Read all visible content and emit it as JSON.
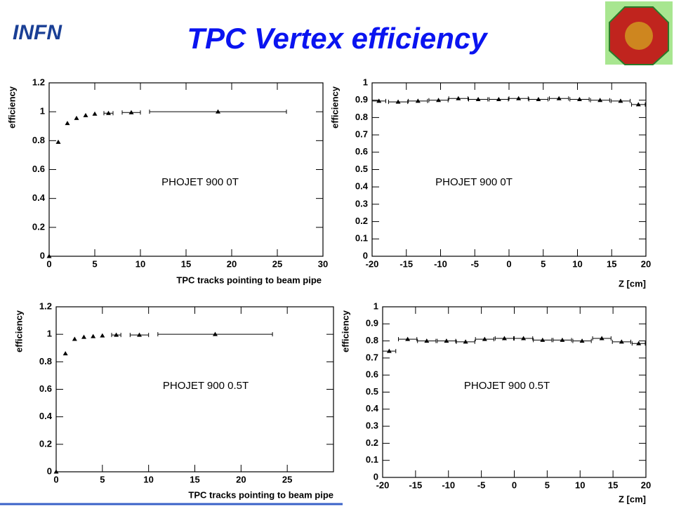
{
  "slide": {
    "title": "TPC Vertex efficiency",
    "logo": "INFN"
  },
  "chart_data": [
    {
      "type": "scatter",
      "xlabel": "TPC tracks pointing to beam pipe",
      "ylabel": "efficiency",
      "annotation": "PHOJET 900 0T",
      "x": [
        0,
        1,
        2,
        3,
        4,
        5,
        6.5,
        9,
        18.5
      ],
      "values": [
        0,
        0.79,
        0.92,
        0.955,
        0.975,
        0.985,
        0.99,
        0.995,
        1.0
      ],
      "xerr": [
        0,
        0,
        0,
        0,
        0,
        0,
        0.5,
        1,
        7.5
      ],
      "xlim": [
        0,
        30
      ],
      "ylim": [
        0,
        1.2
      ],
      "xticks": [
        0,
        5,
        10,
        15,
        20,
        25,
        30
      ],
      "yticks": [
        0,
        0.2,
        0.4,
        0.6,
        0.8,
        1,
        1.2
      ],
      "color": "#000000"
    },
    {
      "type": "scatter",
      "xlabel": "Z [cm]",
      "ylabel": "efficiency",
      "annotation": "PHOJET 900 0T",
      "x": [
        -19,
        -16.2,
        -13.3,
        -10.3,
        -7.4,
        -4.5,
        -1.5,
        1.4,
        4.3,
        7.3,
        10.3,
        13.3,
        16.3,
        18.9
      ],
      "values": [
        0.895,
        0.89,
        0.895,
        0.9,
        0.91,
        0.905,
        0.905,
        0.91,
        0.905,
        0.91,
        0.905,
        0.9,
        0.895,
        0.875
      ],
      "xerr": [
        1,
        1.4,
        1.4,
        1.4,
        1.4,
        1.4,
        1.4,
        1.4,
        1.4,
        1.4,
        1.4,
        1.4,
        1.4,
        1
      ],
      "xlim": [
        -20,
        20
      ],
      "ylim": [
        0,
        1
      ],
      "xticks": [
        -20,
        -15,
        -10,
        -5,
        0,
        5,
        10,
        15,
        20
      ],
      "yticks": [
        0,
        0.1,
        0.2,
        0.3,
        0.4,
        0.5,
        0.6,
        0.7,
        0.8,
        0.9,
        1
      ],
      "color": "#000000"
    },
    {
      "type": "scatter",
      "xlabel": "TPC tracks pointing to beam pipe",
      "ylabel": "efficiency",
      "annotation": "PHOJET 900 0.5T",
      "x": [
        0,
        1,
        2,
        3,
        4,
        5,
        6.5,
        9,
        17.2
      ],
      "values": [
        0,
        0.86,
        0.965,
        0.98,
        0.985,
        0.99,
        0.995,
        0.995,
        1.0
      ],
      "xerr": [
        0,
        0,
        0,
        0,
        0,
        0,
        0.5,
        1,
        6.2
      ],
      "xlim": [
        0,
        30
      ],
      "ylim": [
        0,
        1.2
      ],
      "xticks": [
        0,
        5,
        10,
        15,
        20,
        25
      ],
      "yticks": [
        0,
        0.2,
        0.4,
        0.6,
        0.8,
        1,
        1.2
      ],
      "color": "#000000"
    },
    {
      "type": "scatter",
      "xlabel": "Z [cm]",
      "ylabel": "efficiency",
      "annotation": "PHOJET 900 0.5T",
      "x": [
        -19,
        -16.2,
        -13.3,
        -10.3,
        -7.4,
        -4.5,
        -1.5,
        1.4,
        4.3,
        7.3,
        10.3,
        13.3,
        16.3,
        18.9
      ],
      "values": [
        0.74,
        0.81,
        0.8,
        0.8,
        0.795,
        0.81,
        0.815,
        0.815,
        0.805,
        0.805,
        0.8,
        0.815,
        0.795,
        0.785
      ],
      "xerr": [
        1,
        1.4,
        1.4,
        1.4,
        1.4,
        1.4,
        1.4,
        1.4,
        1.4,
        1.4,
        1.4,
        1.4,
        1.4,
        1
      ],
      "xlim": [
        -20,
        20
      ],
      "ylim": [
        0,
        1
      ],
      "xticks": [
        -20,
        -15,
        -10,
        -5,
        0,
        5,
        10,
        15,
        20
      ],
      "yticks": [
        0,
        0.1,
        0.2,
        0.3,
        0.4,
        0.5,
        0.6,
        0.7,
        0.8,
        0.9,
        1
      ],
      "color": "#000000"
    }
  ]
}
